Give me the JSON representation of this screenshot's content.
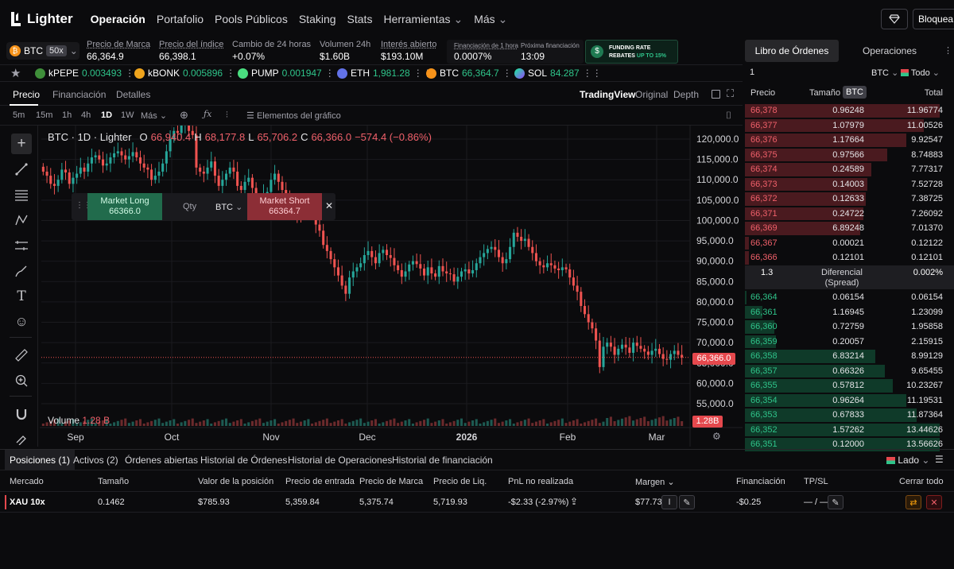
{
  "nav": {
    "brand": "Lighter",
    "items": [
      "Operación",
      "Portafolio",
      "Pools Públicos",
      "Staking",
      "Stats",
      "Herramientas",
      "Más"
    ],
    "lock_label": "Bloquea"
  },
  "market": {
    "symbol": "BTC",
    "leverage": "50x",
    "mark_price_label": "Precio de Marca",
    "mark_price": "66,364.9",
    "index_price_label": "Precio del índice",
    "index_price": "66,398.1",
    "change_label": "Cambio de 24 horas",
    "change": "+0.07%",
    "volume_label": "Volumen 24h",
    "volume": "$1.60B",
    "oi_label": "Interés abierto",
    "oi": "$193.10M",
    "funding_label": "Financiación de 1 hora",
    "funding": "0.0007%",
    "next_funding_label": "Próxima financiación",
    "next_funding": "13:09",
    "rebate_line1": "FUNDING RATE",
    "rebate_line2a": "REBATES",
    "rebate_line2b": "UP TO 15%"
  },
  "favorites": [
    {
      "symbol": "kPEPE",
      "price": "0.003493",
      "color": "#3f8f3a"
    },
    {
      "symbol": "kBONK",
      "price": "0.005896",
      "color": "#f0a51d"
    },
    {
      "symbol": "PUMP",
      "price": "0.001947",
      "color": "#4ade80"
    },
    {
      "symbol": "ETH",
      "price": "1,981.28",
      "color": "#6272e8"
    },
    {
      "symbol": "BTC",
      "price": "66,364.7",
      "color": "#f7931a"
    },
    {
      "symbol": "SOL",
      "price": "84.287",
      "color": "#9945ff"
    }
  ],
  "chart_tabs": [
    "Precio",
    "Financiación",
    "Detalles"
  ],
  "chart_views": [
    "TradingView",
    "Original",
    "Depth"
  ],
  "timeframes": [
    "5m",
    "15m",
    "1h",
    "4h",
    "1D",
    "1W",
    "Más"
  ],
  "indicators_label": "Elementos del gráfico",
  "chart_header": {
    "title": "BTC · 1D · Lighter",
    "o_label": "O",
    "o": "66,940.4",
    "h_label": "H",
    "h": "68,177.8",
    "l_label": "L",
    "l": "65,706.2",
    "c_label": "C",
    "c": "66,366.0",
    "chg": "−574.4 (−0.86%)"
  },
  "quick_trade": {
    "long_label": "Market Long",
    "long_price": "66366.0",
    "qty_label": "Qty",
    "unit": "BTC",
    "short_label": "Market Short",
    "short_price": "66364.7"
  },
  "chart_data": {
    "type": "candlestick",
    "y_ticks": [
      "120,000.0",
      "115,000.0",
      "110,000.0",
      "105,000.0",
      "100,000.0",
      "95,000.0",
      "90,000.0",
      "85,000.0",
      "80,000.0",
      "75,000.0",
      "70,000.0",
      "65,000.0",
      "60,000.0",
      "55,000.0"
    ],
    "y_tick_values": [
      120000,
      115000,
      110000,
      105000,
      100000,
      95000,
      90000,
      85000,
      80000,
      75000,
      70000,
      65000,
      60000,
      55000
    ],
    "x_ticks": [
      "Sep",
      "Oct",
      "Nov",
      "Dec",
      "2026",
      "Feb",
      "Mar"
    ],
    "last_price_label": "66,366.0",
    "last_price": 66366,
    "volume_label": "Volume",
    "volume_value": "1.28 B",
    "volume_badge": "1.28B",
    "closes": [
      112000,
      111000,
      109000,
      108500,
      110000,
      112500,
      111800,
      109000,
      110500,
      111500,
      113000,
      112000,
      114000,
      115500,
      116000,
      115000,
      113500,
      114000,
      115500,
      116500,
      117000,
      116000,
      115000,
      115800,
      116800,
      115500,
      114000,
      113000,
      112500,
      110000,
      111000,
      112000,
      114000,
      117000,
      120000,
      122000,
      121500,
      123500,
      124500,
      122000,
      121000,
      113000,
      112000,
      111500,
      113000,
      114500,
      111000,
      108500,
      110000,
      111500,
      113000,
      112000,
      108500,
      107500,
      109500,
      110500,
      108000,
      104000,
      103500,
      106500,
      107000,
      110000,
      111500,
      109500,
      107500,
      105000,
      104500,
      103500,
      101500,
      101000,
      102000,
      103500,
      102500,
      99000,
      97500,
      94000,
      92500,
      90500,
      88500,
      86500,
      84000,
      82000,
      86000,
      87500,
      88500,
      89500,
      91500,
      92500,
      91000,
      89500,
      92000,
      92800,
      91500,
      90800,
      89000,
      87800,
      86200,
      87500,
      89200,
      90000,
      89300,
      88200,
      86500,
      88500,
      87000,
      86200,
      88800,
      87500,
      87000,
      86800,
      85000,
      86200,
      87500,
      88000,
      87000,
      87800,
      89500,
      91000,
      92000,
      93000,
      93500,
      92800,
      91000,
      89500,
      90500,
      93500,
      97000,
      96000,
      95000,
      95500,
      93500,
      92000,
      90000,
      89000,
      88500,
      89500,
      89000,
      88200,
      87800,
      88500,
      88000,
      86000,
      84000,
      82500,
      79000,
      77000,
      75000,
      73500,
      70500,
      64000,
      69000,
      70000,
      69000,
      67000,
      68500,
      69500,
      68800,
      67500,
      70000,
      69200,
      68500,
      67800,
      67000,
      68000,
      68500,
      67200,
      66000,
      65800,
      67200,
      68000,
      67000,
      66366
    ]
  },
  "orderbook": {
    "tab_book": "Libro de Órdenes",
    "tab_trades": "Operaciones",
    "group": "1",
    "symbol": "BTC",
    "filter": "Todo",
    "col_price": "Precio",
    "col_size": "Tamaño",
    "col_size_unit": "BTC",
    "col_total": "Total",
    "asks": [
      {
        "price": "66,378",
        "size": "0.96248",
        "total": "11.96774",
        "depth": 1.0
      },
      {
        "price": "66,377",
        "size": "1.07979",
        "total": "11.00526",
        "depth": 0.92
      },
      {
        "price": "66,376",
        "size": "1.17664",
        "total": "9.92547",
        "depth": 0.83
      },
      {
        "price": "66,375",
        "size": "0.97566",
        "total": "8.74883",
        "depth": 0.73
      },
      {
        "price": "66,374",
        "size": "0.24589",
        "total": "7.77317",
        "depth": 0.65
      },
      {
        "price": "66,373",
        "size": "0.14003",
        "total": "7.52728",
        "depth": 0.63
      },
      {
        "price": "66,372",
        "size": "0.12633",
        "total": "7.38725",
        "depth": 0.62
      },
      {
        "price": "66,371",
        "size": "0.24722",
        "total": "7.26092",
        "depth": 0.61
      },
      {
        "price": "66,369",
        "size": "6.89248",
        "total": "7.01370",
        "depth": 0.59
      },
      {
        "price": "66,367",
        "size": "0.00021",
        "total": "0.12122",
        "depth": 0.02
      },
      {
        "price": "66,366",
        "size": "0.12101",
        "total": "0.12101",
        "depth": 0.02
      }
    ],
    "spread_value": "1.3",
    "spread_label1": "Diferencial",
    "spread_label2": "(Spread)",
    "spread_pct": "0.002%",
    "bids": [
      {
        "price": "66,364",
        "size": "0.06154",
        "total": "0.06154",
        "depth": 0.01
      },
      {
        "price": "66,361",
        "size": "1.16945",
        "total": "1.23099",
        "depth": 0.09
      },
      {
        "price": "66,360",
        "size": "0.72759",
        "total": "1.95858",
        "depth": 0.15
      },
      {
        "price": "66,359",
        "size": "0.20057",
        "total": "2.15915",
        "depth": 0.16
      },
      {
        "price": "66,358",
        "size": "6.83214",
        "total": "8.99129",
        "depth": 0.67
      },
      {
        "price": "66,357",
        "size": "0.66326",
        "total": "9.65455",
        "depth": 0.72
      },
      {
        "price": "66,355",
        "size": "0.57812",
        "total": "10.23267",
        "depth": 0.76
      },
      {
        "price": "66,354",
        "size": "0.96264",
        "total": "11.19531",
        "depth": 0.83
      },
      {
        "price": "66,353",
        "size": "0.67833",
        "total": "11.87364",
        "depth": 0.88
      },
      {
        "price": "66,352",
        "size": "1.57262",
        "total": "13.44626",
        "depth": 1.0
      },
      {
        "price": "66,351",
        "size": "0.12000",
        "total": "13.56626",
        "depth": 1.0
      }
    ]
  },
  "positions": {
    "tabs": [
      "Posiciones (1)",
      "Activos (2)",
      "Órdenes abiertas",
      "Historial de Órdenes",
      "Historial de Operaciones",
      "Historial de financiación"
    ],
    "side_filter": "Lado",
    "columns": [
      "Mercado",
      "Tamaño",
      "Valor de la posición",
      "Precio de entrada",
      "Precio de Marca",
      "Precio de Liq.",
      "PnL no realizada",
      "Margen",
      "Financiación",
      "TP/SL"
    ],
    "close_all": "Cerrar todo",
    "rows": [
      {
        "market": "XAU 10x",
        "size": "0.1462",
        "value": "$785.93",
        "entry": "5,359.84",
        "mark": "5,375.74",
        "liq": "5,719.93",
        "pnl": "-$2.33 (-2.97%)",
        "margin": "$77.73",
        "funding": "-$0.25",
        "tpsl": "— / —"
      }
    ]
  }
}
